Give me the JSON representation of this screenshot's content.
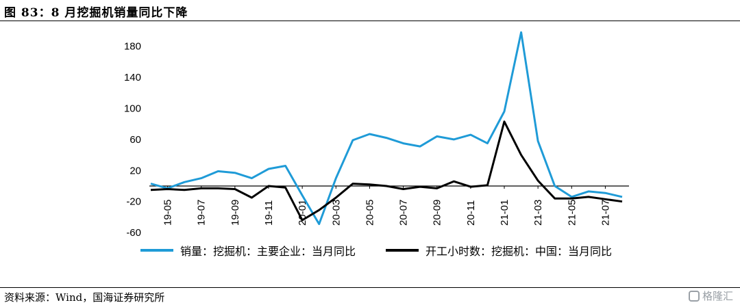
{
  "title": "图 83：8 月挖掘机销量同比下降",
  "source": "资料来源：Wind，国海证券研究所",
  "watermark": "格隆汇",
  "colors": {
    "blue": "#1f9bd7",
    "black": "#000000"
  },
  "chart_data": {
    "type": "line",
    "x": [
      "19-04",
      "19-05",
      "19-06",
      "19-07",
      "19-08",
      "19-09",
      "19-10",
      "19-11",
      "19-12",
      "20-01",
      "20-02",
      "20-03",
      "20-04",
      "20-05",
      "20-06",
      "20-07",
      "20-08",
      "20-09",
      "20-10",
      "20-11",
      "20-12",
      "21-01",
      "21-02",
      "21-03",
      "21-04",
      "21-05",
      "21-06",
      "21-07",
      "21-08"
    ],
    "x_tick_labels": [
      "19-05",
      "19-07",
      "19-09",
      "19-11",
      "20-01",
      "20-03",
      "20-05",
      "20-07",
      "20-09",
      "20-11",
      "21-01",
      "21-03",
      "21-05",
      "21-07"
    ],
    "ylim": [
      -60,
      200
    ],
    "yticks": [
      -60,
      -20,
      20,
      60,
      100,
      140,
      180
    ],
    "series": [
      {
        "name": "销量：挖掘机：主要企业：当月同比",
        "color": "#1f9bd7",
        "values": [
          3,
          -3,
          5,
          10,
          19,
          17,
          10,
          22,
          26,
          -12,
          -49,
          10,
          59,
          67,
          62,
          55,
          51,
          64,
          60,
          66,
          55,
          96,
          198,
          58,
          0,
          -14,
          -7,
          -9,
          -14
        ]
      },
      {
        "name": "开工小时数：挖掘机：中国：当月同比",
        "color": "#000000",
        "values": [
          -5,
          -4,
          -5,
          -3,
          -3,
          -4,
          -15,
          0,
          -2,
          -44,
          -31,
          -15,
          3,
          2,
          0,
          -4,
          -1,
          -3,
          6,
          -1,
          1,
          83,
          40,
          7,
          -16,
          -16,
          -14,
          -17,
          -20
        ]
      }
    ],
    "legend": "bottom"
  }
}
